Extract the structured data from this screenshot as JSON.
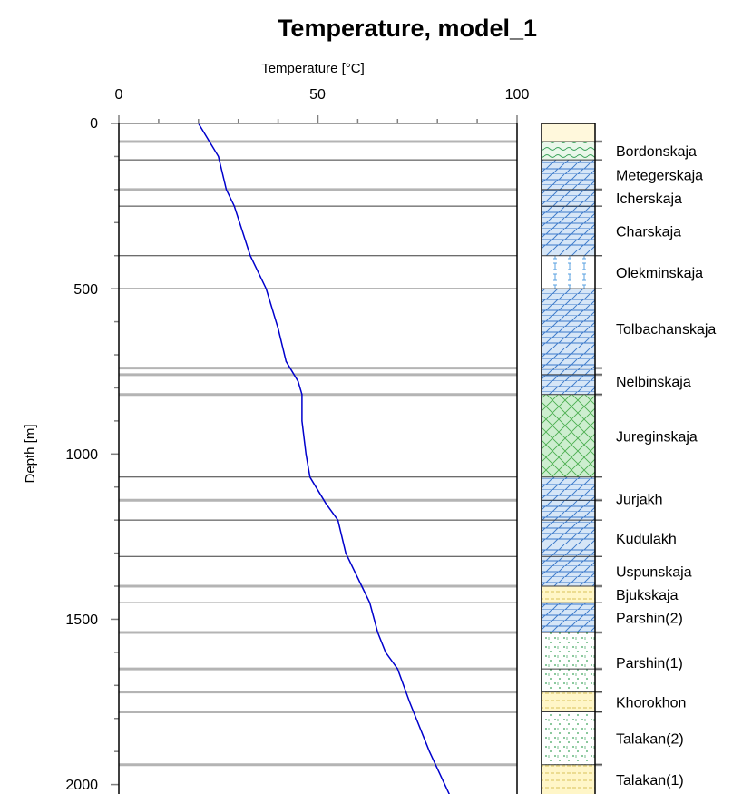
{
  "chart_data": {
    "type": "line",
    "title": "Temperature, model_1",
    "xlabel": "Temperature [°C]",
    "ylabel": "Depth [m]",
    "xlim": [
      0,
      100
    ],
    "ylim": [
      0,
      2030
    ],
    "y_inverted": true,
    "x_axis_position": "top",
    "x_ticks": [
      "0",
      "50",
      "100"
    ],
    "y_ticks": [
      "0",
      "500",
      "1000",
      "1500",
      "2000"
    ],
    "series": [
      {
        "color": "#0000cc",
        "x": [
          20,
          25,
          27,
          29,
          33,
          37,
          40,
          42,
          45,
          46,
          46,
          47,
          48,
          52,
          55,
          57,
          61,
          63,
          65,
          67,
          70,
          73,
          78,
          83
        ],
        "y": [
          0,
          100,
          200,
          250,
          400,
          500,
          620,
          720,
          780,
          820,
          900,
          1000,
          1070,
          1150,
          1200,
          1300,
          1400,
          1450,
          1540,
          1600,
          1650,
          1750,
          1900,
          2030
        ]
      }
    ],
    "boundaries": {
      "thick": [
        55,
        200,
        740,
        760,
        820,
        1140,
        1400,
        1540,
        1650,
        1720,
        1780,
        1940
      ],
      "thin": [
        110,
        250,
        400,
        500,
        1070,
        1200,
        1310,
        1450
      ]
    },
    "formations": [
      {
        "name": "Bordonskaja",
        "top": 55,
        "bottom": 110,
        "pattern": "green-wave"
      },
      {
        "name": "Metegerskaja",
        "top": 110,
        "bottom": 200,
        "pattern": "blue-brick"
      },
      {
        "name": "Icherskaja",
        "top": 200,
        "bottom": 250,
        "pattern": "blue-brick"
      },
      {
        "name": "Charskaja",
        "top": 250,
        "bottom": 400,
        "pattern": "blue-brick"
      },
      {
        "name": "Olekminskaja",
        "top": 400,
        "bottom": 500,
        "pattern": "blue-dash"
      },
      {
        "name": "Tolbachanskaja",
        "top": 500,
        "bottom": 740,
        "pattern": "blue-brick"
      },
      {
        "name": "Nelbinskaja",
        "top": 740,
        "bottom": 820,
        "pattern": "blue-brick"
      },
      {
        "name": "Jureginskaja",
        "top": 820,
        "bottom": 1070,
        "pattern": "green-cross"
      },
      {
        "name": "Jurjakh",
        "top": 1070,
        "bottom": 1200,
        "pattern": "blue-brick"
      },
      {
        "name": "Kudulakh",
        "top": 1200,
        "bottom": 1310,
        "pattern": "blue-brick"
      },
      {
        "name": "Uspunskaja",
        "top": 1310,
        "bottom": 1400,
        "pattern": "blue-brick"
      },
      {
        "name": "Bjukskaja",
        "top": 1400,
        "bottom": 1450,
        "pattern": "yellow-dash"
      },
      {
        "name": "Parshin(2)",
        "top": 1450,
        "bottom": 1540,
        "pattern": "blue-brick"
      },
      {
        "name": "Parshin(1)",
        "top": 1540,
        "bottom": 1720,
        "pattern": "green-dots"
      },
      {
        "name": "Khorokhon",
        "top": 1720,
        "bottom": 1780,
        "pattern": "yellow-dash"
      },
      {
        "name": "Talakan(2)",
        "top": 1780,
        "bottom": 1940,
        "pattern": "green-dots"
      },
      {
        "name": "Talakan(1)",
        "top": 1940,
        "bottom": 2030,
        "pattern": "yellow-dash"
      }
    ],
    "colors": {
      "line": "#0000cc",
      "thick_grid": "#b4b4b4",
      "thin_grid": "#3c3c3c",
      "top_fill": "#fff8dc"
    }
  }
}
